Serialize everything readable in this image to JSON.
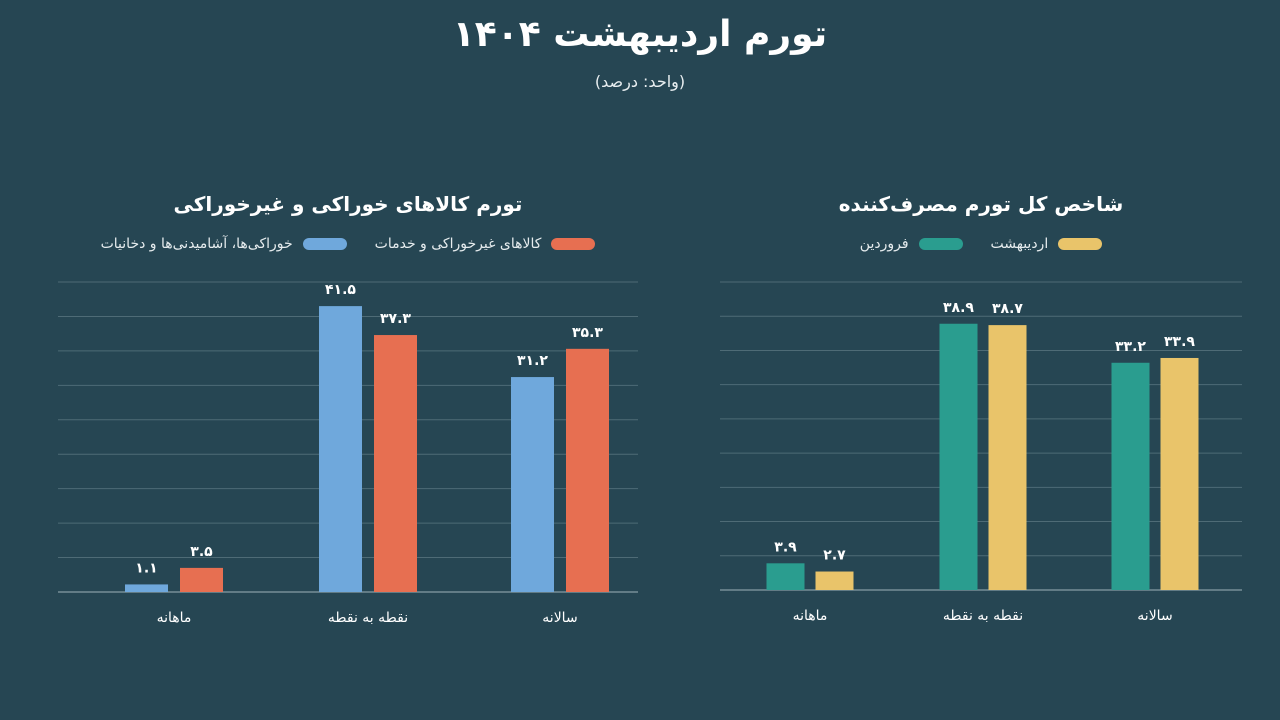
{
  "header": {
    "title": "تورم اردیبهشت ۱۴۰۴",
    "subtitle": "(واحد: درصد)"
  },
  "colors": {
    "background": "#264653",
    "teal": "#2a9d8f",
    "yellow": "#e9c46a",
    "blue": "#6fa8dc",
    "orange": "#e76f51"
  },
  "chart_data": [
    {
      "type": "bar",
      "title": "شاخص کل تورم مصرف‌کننده",
      "categories": [
        "ماهانه",
        "نقطه به نقطه",
        "سالانه"
      ],
      "series": [
        {
          "name": "فروردین",
          "color": "#2a9d8f",
          "values": [
            3.9,
            38.9,
            33.2
          ],
          "labels": [
            "۳.۹",
            "۳۸.۹",
            "۳۳.۲"
          ]
        },
        {
          "name": "اردیبهشت",
          "color": "#e9c46a",
          "values": [
            2.7,
            38.7,
            33.9
          ],
          "labels": [
            "۲.۷",
            "۳۸.۷",
            "۳۳.۹"
          ]
        }
      ],
      "ylim": [
        0,
        45
      ],
      "grid": true,
      "legend": "top"
    },
    {
      "type": "bar",
      "title": "تورم کالاهای خوراکی و غیرخوراکی",
      "categories": [
        "ماهانه",
        "نقطه به نقطه",
        "سالانه"
      ],
      "series": [
        {
          "name": "خوراکی‌ها، آشامیدنی‌ها و دخانیات",
          "color": "#6fa8dc",
          "values": [
            1.1,
            41.5,
            31.2
          ],
          "labels": [
            "۱.۱",
            "۴۱.۵",
            "۳۱.۲"
          ]
        },
        {
          "name": "کالاهای غیرخوراکی و خدمات",
          "color": "#e76f51",
          "values": [
            3.5,
            37.3,
            35.3
          ],
          "labels": [
            "۳.۵",
            "۳۷.۳",
            "۳۵.۳"
          ]
        }
      ],
      "ylim": [
        0,
        45
      ],
      "grid": true,
      "legend": "top"
    }
  ]
}
